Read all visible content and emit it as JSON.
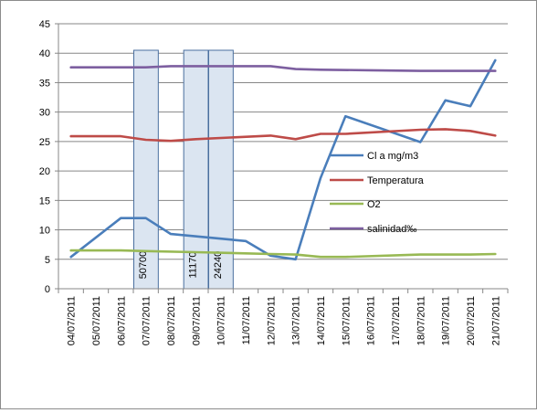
{
  "chart_data": {
    "type": "line",
    "x": [
      "04/07/2011",
      "05/07/2011",
      "06/07/2011",
      "07/07/2011",
      "08/07/2011",
      "09/07/2011",
      "10/07/2011",
      "11/07/2011",
      "12/07/2011",
      "13/07/2011",
      "14/07/2011",
      "15/07/2011",
      "16/07/2011",
      "17/07/2011",
      "18/07/2011",
      "19/07/2011",
      "20/07/2011",
      "21/07/2011"
    ],
    "ylim": [
      0,
      45
    ],
    "yticks": [
      0,
      5,
      10,
      15,
      20,
      25,
      30,
      35,
      40,
      45
    ],
    "grid": true,
    "legend_position": "right",
    "series": [
      {
        "name": "Cl a mg/m3",
        "color": "#4a7ebb",
        "points": [
          {
            "x": "04/07/2011",
            "y": 5.4
          },
          {
            "x": "06/07/2011",
            "y": 12.0
          },
          {
            "x": "07/07/2011",
            "y": 12.0
          },
          {
            "x": "08/07/2011",
            "y": 9.3
          },
          {
            "x": "11/07/2011",
            "y": 8.1
          },
          {
            "x": "12/07/2011",
            "y": 5.6
          },
          {
            "x": "13/07/2011",
            "y": 5.0
          },
          {
            "x": "14/07/2011",
            "y": 18.8
          },
          {
            "x": "15/07/2011",
            "y": 29.3
          },
          {
            "x": "18/07/2011",
            "y": 24.9
          },
          {
            "x": "19/07/2011",
            "y": 32.0
          },
          {
            "x": "20/07/2011",
            "y": 31.0
          },
          {
            "x": "21/07/2011",
            "y": 38.8
          }
        ]
      },
      {
        "name": "Temperatura",
        "color": "#be4b48",
        "points": [
          {
            "x": "04/07/2011",
            "y": 25.9
          },
          {
            "x": "06/07/2011",
            "y": 25.9
          },
          {
            "x": "07/07/2011",
            "y": 25.3
          },
          {
            "x": "08/07/2011",
            "y": 25.1
          },
          {
            "x": "09/07/2011",
            "y": 25.4
          },
          {
            "x": "12/07/2011",
            "y": 26.0
          },
          {
            "x": "13/07/2011",
            "y": 25.4
          },
          {
            "x": "14/07/2011",
            "y": 26.3
          },
          {
            "x": "15/07/2011",
            "y": 26.3
          },
          {
            "x": "18/07/2011",
            "y": 27.0
          },
          {
            "x": "19/07/2011",
            "y": 27.1
          },
          {
            "x": "20/07/2011",
            "y": 26.8
          },
          {
            "x": "21/07/2011",
            "y": 26.0
          }
        ]
      },
      {
        "name": "O2",
        "color": "#98b954",
        "points": [
          {
            "x": "04/07/2011",
            "y": 6.5
          },
          {
            "x": "06/07/2011",
            "y": 6.5
          },
          {
            "x": "07/07/2011",
            "y": 6.4
          },
          {
            "x": "09/07/2011",
            "y": 6.2
          },
          {
            "x": "11/07/2011",
            "y": 6.0
          },
          {
            "x": "12/07/2011",
            "y": 5.9
          },
          {
            "x": "13/07/2011",
            "y": 5.8
          },
          {
            "x": "14/07/2011",
            "y": 5.4
          },
          {
            "x": "15/07/2011",
            "y": 5.4
          },
          {
            "x": "18/07/2011",
            "y": 5.8
          },
          {
            "x": "19/07/2011",
            "y": 5.8
          },
          {
            "x": "20/07/2011",
            "y": 5.8
          },
          {
            "x": "21/07/2011",
            "y": 5.9
          }
        ]
      },
      {
        "name": "salinidad‰",
        "color": "#7d5fa0",
        "points": [
          {
            "x": "04/07/2011",
            "y": 37.6
          },
          {
            "x": "07/07/2011",
            "y": 37.6
          },
          {
            "x": "08/07/2011",
            "y": 37.8
          },
          {
            "x": "12/07/2011",
            "y": 37.8
          },
          {
            "x": "13/07/2011",
            "y": 37.3
          },
          {
            "x": "14/07/2011",
            "y": 37.2
          },
          {
            "x": "16/07/2011",
            "y": 37.1
          },
          {
            "x": "18/07/2011",
            "y": 37.0
          },
          {
            "x": "21/07/2011",
            "y": 37.0
          }
        ]
      }
    ],
    "annotations": [
      {
        "label": "50700",
        "x_from": "07/07/2011",
        "x_to": "07/07/2011",
        "top": 40.5
      },
      {
        "label": "11170",
        "x_from": "09/07/2011",
        "x_to": "09/07/2011",
        "top": 40.5
      },
      {
        "label": "24240",
        "x_from": "10/07/2011",
        "x_to": "10/07/2011",
        "top": 40.5
      }
    ]
  }
}
